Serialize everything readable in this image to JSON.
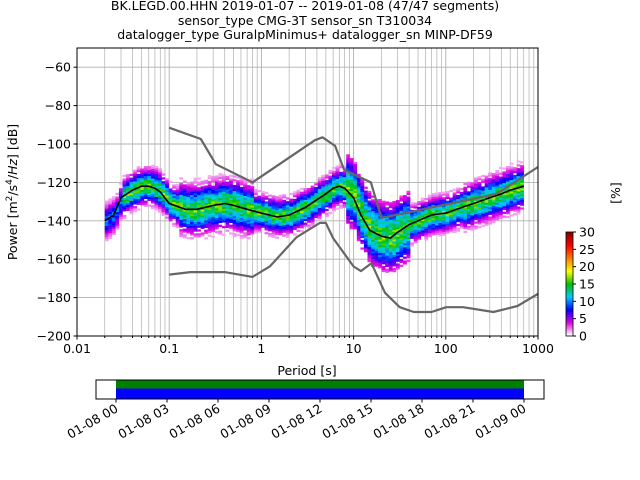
{
  "title": {
    "line1": "BK.LEGD.00.HHN   2019-01-07 -- 2019-01-08  (47/47 segments)",
    "line2": "sensor_type CMG-3T sensor_sn T310034",
    "line3": "datalogger_type GuralpMinimus+ datalogger_sn MINP-DF59"
  },
  "colorbar": {
    "label": "[%]",
    "ticks": [
      "0",
      "5",
      "10",
      "15",
      "20",
      "25",
      "30"
    ],
    "range": [
      0,
      30
    ],
    "colors": [
      "#ffffff",
      "#e000e0",
      "#0000ff",
      "#00ccff",
      "#00c000",
      "#ffff00",
      "#ff8000",
      "#ff0000",
      "#900000"
    ]
  },
  "colors": {
    "noise_model": "#666666",
    "mode_line": "#000000",
    "coverage_green": "#008000",
    "coverage_blue": "#0000ff",
    "grid": "#b0b0b0"
  },
  "chart_data": [
    {
      "type": "heatmap",
      "subtype": "probabilistic power spectral density",
      "xlabel": "Period [s]",
      "ylabel": "Power [m²/s⁴/Hz] [dB]",
      "xscale": "log",
      "xlim": [
        0.01,
        1000
      ],
      "ylim": [
        -200,
        -50
      ],
      "xticks": [
        "0.01",
        "0.1",
        "1",
        "10",
        "100",
        "1000"
      ],
      "yticks": [
        "−200",
        "−180",
        "−160",
        "−140",
        "−120",
        "−100",
        "−80",
        "−60"
      ],
      "grid": true,
      "data_period_range": [
        0.02,
        700
      ],
      "series": [
        {
          "name": "",
          "kind": "mode",
          "x": [
            0.02,
            0.025,
            0.03,
            0.04,
            0.05,
            0.06,
            0.07,
            0.08,
            0.1,
            0.15,
            0.2,
            0.3,
            0.4,
            0.5,
            0.7,
            1,
            1.5,
            2,
            3,
            4,
            5,
            6,
            7,
            8,
            10,
            12,
            15,
            20,
            25,
            30,
            40,
            50,
            70,
            100,
            150,
            200,
            300,
            400,
            500,
            700
          ],
          "y": [
            -140,
            -137,
            -128,
            -124,
            -122,
            -122,
            -123,
            -125,
            -131,
            -134,
            -134,
            -132,
            -131,
            -132,
            -134,
            -136,
            -138,
            -137,
            -133,
            -129,
            -126,
            -123,
            -122,
            -123,
            -128,
            -137,
            -145,
            -148,
            -149,
            -146,
            -142,
            -140,
            -137,
            -136,
            -133,
            -131,
            -128,
            -126,
            -124,
            -122
          ]
        },
        {
          "name": "",
          "kind": "noise model high",
          "x": [
            0.1,
            0.22,
            0.32,
            0.8,
            3.8,
            4.6,
            6.3,
            7.9,
            15.4,
            20,
            354.8,
            1000
          ],
          "y": [
            -91.5,
            -97.4,
            -110.5,
            -120,
            -98,
            -96.5,
            -101,
            -113.5,
            -120,
            -138.5,
            -126,
            -112
          ]
        },
        {
          "name": "",
          "kind": "noise model low",
          "x": [
            0.1,
            0.17,
            0.4,
            0.8,
            1.24,
            2.4,
            4.3,
            5,
            6,
            10,
            12,
            15.6,
            21.9,
            31.6,
            45,
            70,
            101,
            154,
            328,
            600,
            1000
          ],
          "y": [
            -168,
            -166.7,
            -166.7,
            -169.2,
            -163.7,
            -148.6,
            -141.1,
            -141.1,
            -149,
            -163.8,
            -166.2,
            -162.1,
            -177.5,
            -185,
            -187.5,
            -187.5,
            -185,
            -185,
            -187.5,
            -184.4,
            -178
          ]
        }
      ]
    },
    {
      "type": "bar",
      "subtype": "data coverage timeline",
      "xticks": [
        "01-08 00",
        "01-08 03",
        "01-08 06",
        "01-08 09",
        "01-08 12",
        "01-08 15",
        "01-08 18",
        "01-08 21",
        "01-09 00"
      ],
      "coverage": [
        {
          "name": "",
          "color": "#008000",
          "start": "01-08 00",
          "end": "01-09 00"
        },
        {
          "name": "",
          "color": "#0000ff",
          "start": "01-08 00",
          "end": "01-09 00"
        }
      ]
    }
  ]
}
